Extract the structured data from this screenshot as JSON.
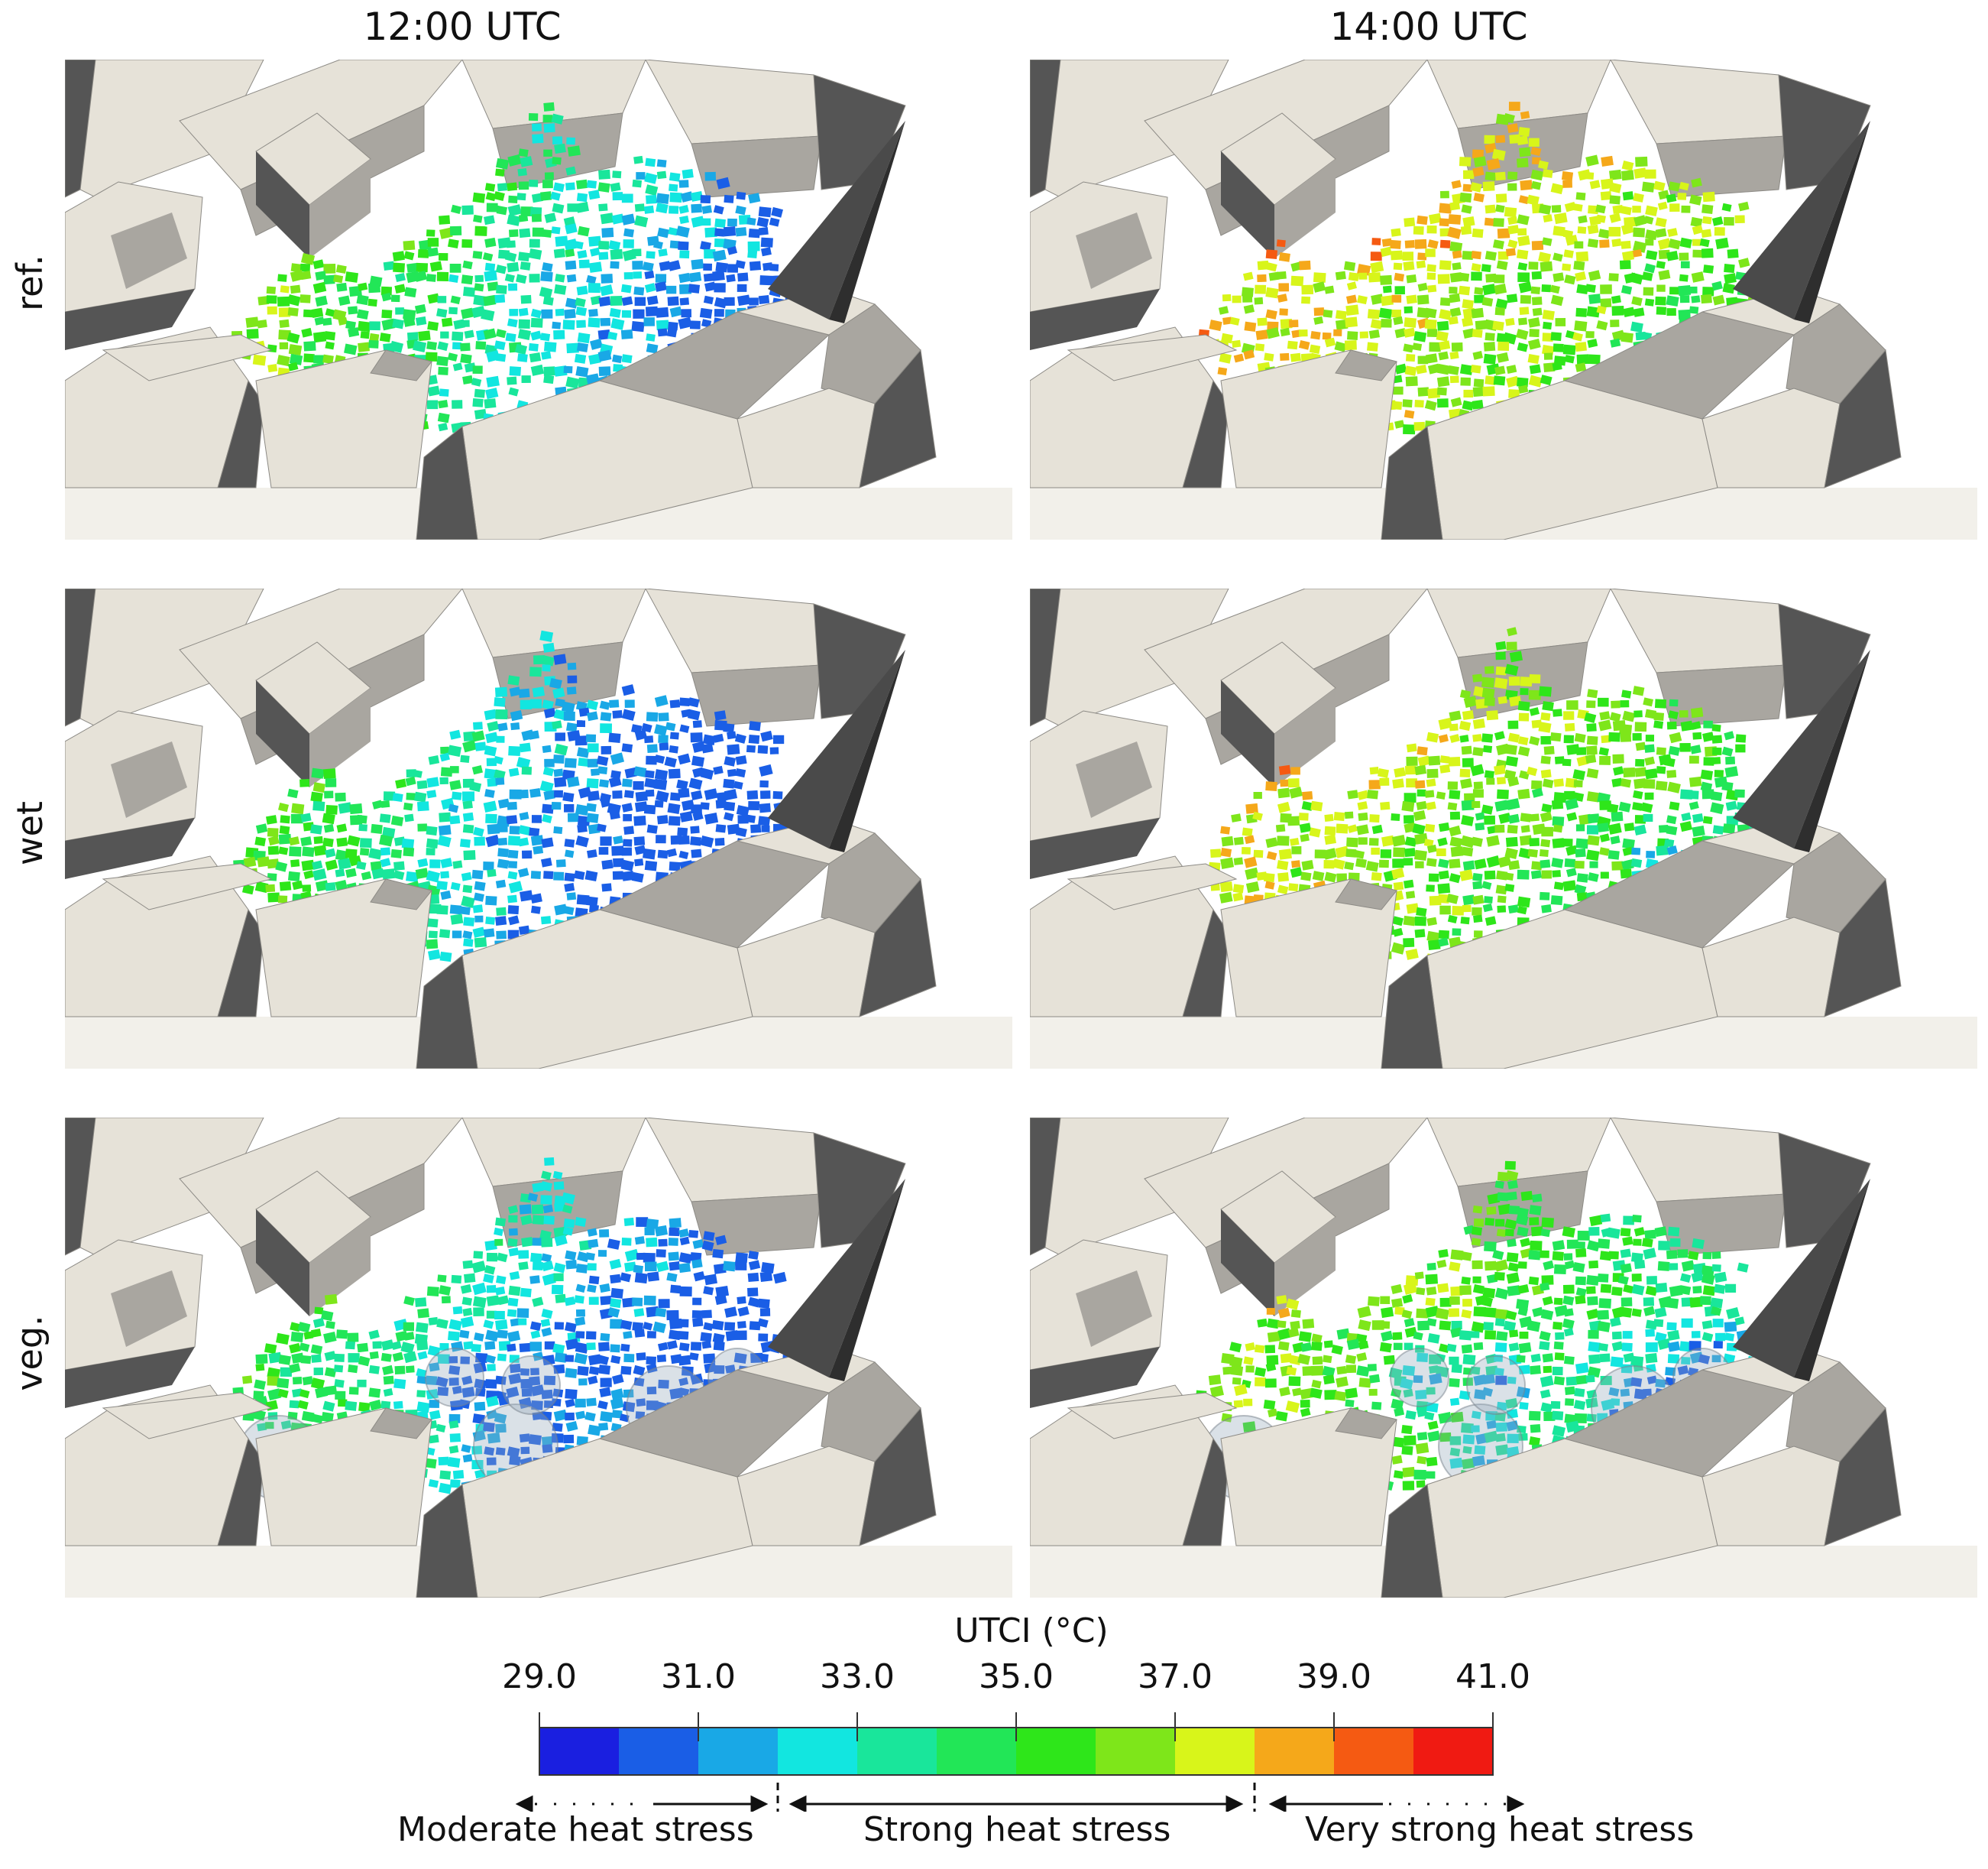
{
  "columns": [
    "12:00 UTC",
    "14:00 UTC"
  ],
  "rows": [
    "ref.",
    "wet",
    "veg."
  ],
  "colorbar": {
    "title": "UTCI (°C)",
    "tick_labels": [
      "29.0",
      "31.0",
      "33.0",
      "35.0",
      "37.0",
      "39.0",
      "41.0"
    ],
    "colors": [
      "#1a1fe0",
      "#1a5ee6",
      "#19a8e6",
      "#12e6e0",
      "#19e69b",
      "#22e657",
      "#2ee61a",
      "#7ee61a",
      "#d8f51a",
      "#f5a81a",
      "#f55a12",
      "#f01a12"
    ]
  },
  "heat_stress_zones": [
    "Moderate heat stress",
    "Strong heat stress",
    "Very strong heat stress"
  ],
  "colors": {
    "building_light": "#e6e2d8",
    "building_mid": "#a9a6a0",
    "building_dark": "#555555"
  }
}
